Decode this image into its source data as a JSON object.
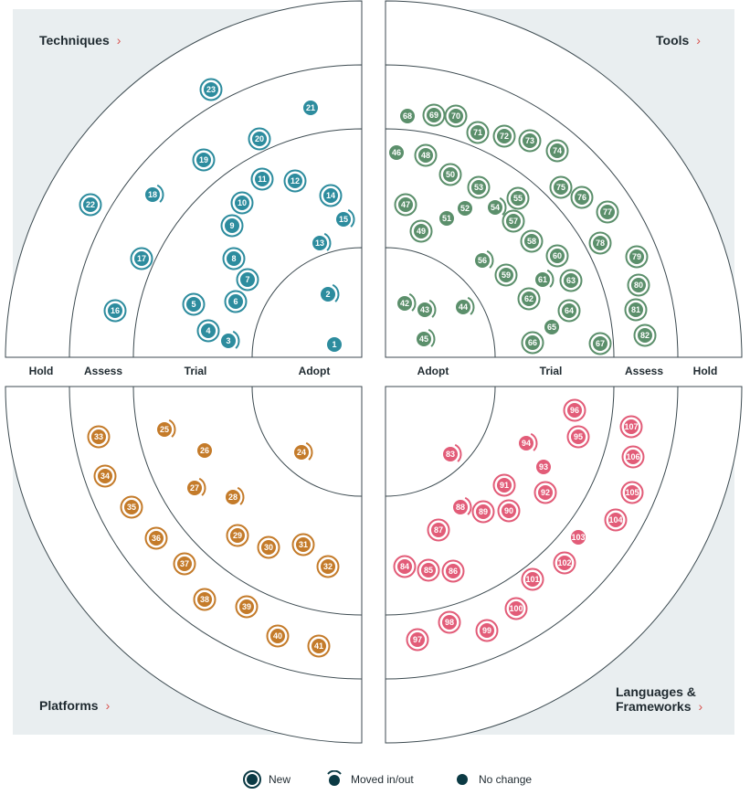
{
  "quadrants": [
    {
      "key": "techniques",
      "title": "Techniques",
      "color": "#2d8c9e"
    },
    {
      "key": "tools",
      "title": "Tools",
      "color": "#5b8f6b"
    },
    {
      "key": "platforms",
      "title": "Platforms",
      "color": "#c47b2a"
    },
    {
      "key": "languages",
      "title": "Languages & Frameworks",
      "title_line1": "Languages &",
      "title_line2": "Frameworks",
      "color": "#e25c78"
    }
  ],
  "rings": {
    "left": [
      "Hold",
      "Assess",
      "Trial",
      "Adopt"
    ],
    "right": [
      "Adopt",
      "Trial",
      "Assess",
      "Hold"
    ]
  },
  "chevron": "›",
  "legend": [
    {
      "type": "new",
      "label": "New"
    },
    {
      "type": "moved",
      "label": "Moved in/out"
    },
    {
      "type": "nochange",
      "label": "No change"
    }
  ],
  "blip_groups": {
    "techniques": {
      "new": [
        22,
        23,
        17,
        16,
        19,
        20,
        11,
        12,
        14,
        10,
        9,
        8,
        7,
        6,
        5,
        4
      ],
      "moved": [
        18,
        15,
        13,
        3,
        2
      ],
      "nochange": [
        21,
        1
      ]
    },
    "tools": {
      "new": [
        69,
        70,
        71,
        72,
        73,
        74,
        48,
        50,
        53,
        55,
        75,
        76,
        77,
        47,
        49,
        57,
        58,
        78,
        79,
        80,
        81,
        82,
        60,
        63,
        64,
        59,
        62,
        66,
        67
      ],
      "moved": [
        54,
        56,
        61,
        42,
        43,
        44,
        45
      ],
      "nochange": [
        68,
        46,
        52,
        51,
        65
      ]
    },
    "platforms": {
      "new": [
        33,
        34,
        35,
        36,
        37,
        38,
        39,
        40,
        41,
        29,
        30,
        31,
        32
      ],
      "moved": [
        25,
        27,
        28,
        24
      ],
      "nochange": [
        26
      ]
    },
    "languages": {
      "new": [
        96,
        95,
        107,
        106,
        105,
        104,
        92,
        91,
        90,
        89,
        87,
        84,
        85,
        86,
        101,
        102,
        100,
        98,
        97,
        99
      ],
      "moved": [
        94,
        83,
        88
      ],
      "nochange": [
        93,
        103
      ]
    }
  }
}
